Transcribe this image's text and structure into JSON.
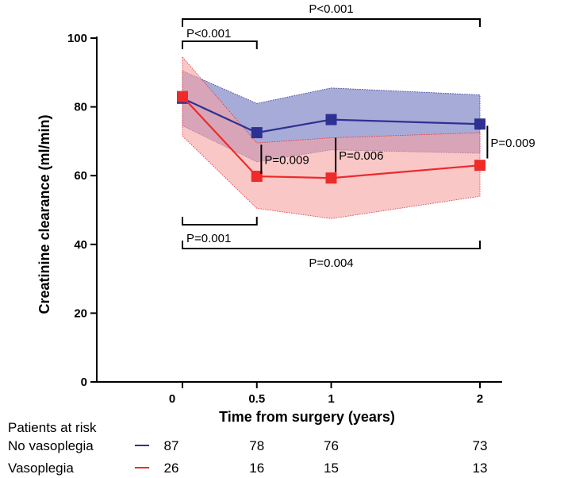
{
  "chart_data": {
    "type": "line",
    "xlabel": "Time from surgery (years)",
    "ylabel": "Creatinine clearance (ml/min)",
    "xlim": [
      -0.6,
      2.2
    ],
    "ylim": [
      0,
      100
    ],
    "x_ticks": [
      0,
      0.5,
      1,
      2
    ],
    "x_tick_labels": [
      "0",
      "0.5",
      "1",
      "2"
    ],
    "y_ticks": [
      0,
      20,
      40,
      60,
      80,
      100
    ],
    "y_tick_labels": [
      "0",
      "20",
      "40",
      "60",
      "80",
      "100"
    ],
    "grid": false,
    "series": [
      {
        "name": "No vasoplegia",
        "color": "#2e3192",
        "band_color": "#8a8fc9",
        "x": [
          0,
          0.5,
          1,
          2
        ],
        "y": [
          82.5,
          72.5,
          76.3,
          75
        ],
        "upper": [
          90.5,
          81,
          85.5,
          83.5
        ],
        "lower": [
          74.5,
          64,
          67.5,
          66.5
        ]
      },
      {
        "name": "Vasoplegia",
        "color": "#ee2a2a",
        "band_color": "#f7a2a2",
        "x": [
          0,
          0.5,
          1,
          2
        ],
        "y": [
          83,
          59.8,
          59.3,
          63
        ],
        "upper": [
          94.5,
          69.5,
          71,
          72.5
        ],
        "lower": [
          71.5,
          50.5,
          47.5,
          54
        ]
      }
    ],
    "annotations": {
      "brackets": [
        {
          "label": "P<0.001",
          "x1": 0,
          "x2": 0.5,
          "side": "top",
          "y": 98
        },
        {
          "label": "P<0.001",
          "x1": 0,
          "x2": 2,
          "side": "top",
          "y": 105
        },
        {
          "label": "P=0.001",
          "x1": 0,
          "x2": 0.5,
          "side": "bottom",
          "y": 48
        },
        {
          "label": "P=0.004",
          "x1": 0,
          "x2": 2,
          "side": "bottom",
          "y": 40
        }
      ],
      "vlines": [
        {
          "label": "P=0.009",
          "x": 0.53,
          "y1": 69,
          "y2": 60.5
        },
        {
          "label": "P=0.006",
          "x": 1.03,
          "y1": 71,
          "y2": 61
        },
        {
          "label": "P=0.009",
          "x": 2.05,
          "y1": 74.5,
          "y2": 65
        }
      ]
    },
    "risk_table": {
      "title": "Patients at risk",
      "rows": [
        {
          "label": "No vasoplegia",
          "color": "#2e3192",
          "values": [
            87,
            78,
            76,
            73
          ]
        },
        {
          "label": "Vasoplegia",
          "color": "#ee2a2a",
          "values": [
            26,
            16,
            15,
            13
          ]
        }
      ]
    }
  }
}
